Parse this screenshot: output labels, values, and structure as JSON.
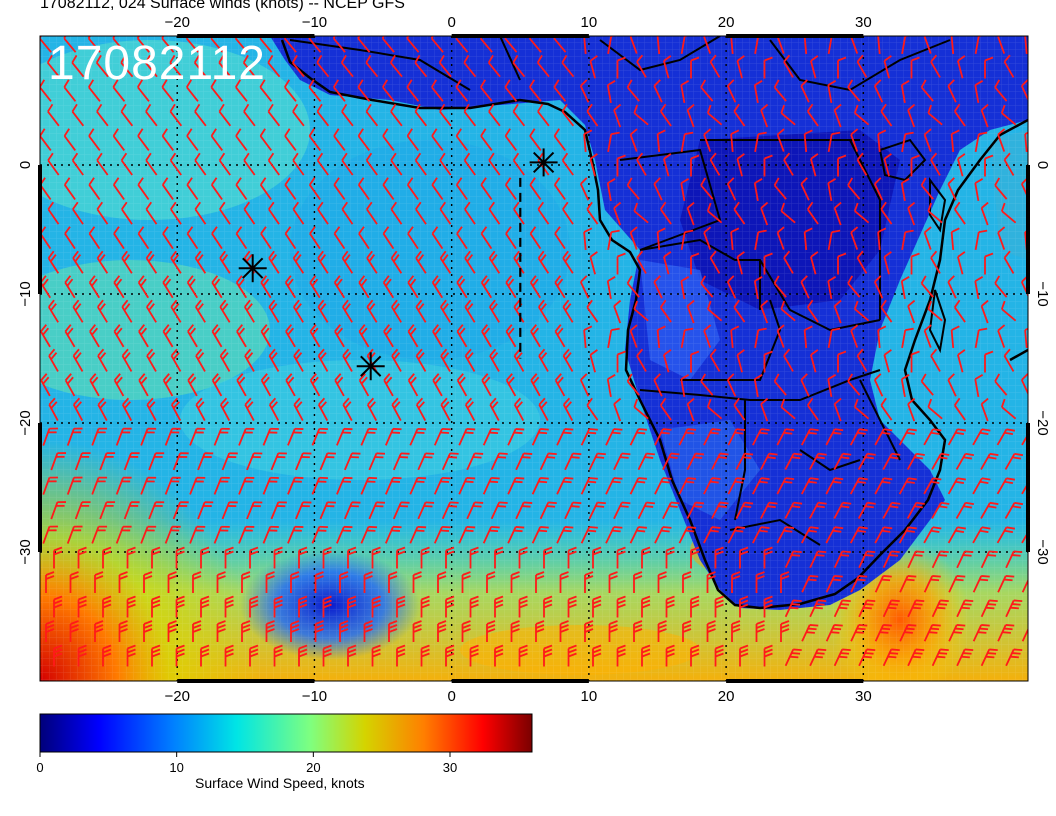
{
  "header": {
    "title": "17082112, 024 Surface winds (knots) -- NCEP GFS",
    "stamp": "17082112"
  },
  "map": {
    "lon_range": [
      -30,
      42
    ],
    "lat_range": [
      -40,
      10
    ],
    "lon_ticks": [
      "-20",
      "-10",
      "0",
      "10",
      "20",
      "30"
    ],
    "lon_tick_values": [
      -20,
      -10,
      0,
      10,
      20,
      30
    ],
    "lat_ticks": [
      "0",
      "-10",
      "-20",
      "-30"
    ],
    "lat_tick_values": [
      0,
      -10,
      -20,
      -30
    ],
    "coastline_color": "#000000",
    "barb_color": "#ff1a1a",
    "storm_markers": [
      {
        "lon": 6.7,
        "lat": 0.2
      },
      {
        "lon": -14.5,
        "lat": -8.0
      },
      {
        "lon": -5.9,
        "lat": -15.6
      }
    ],
    "dashed_track": [
      [
        5.0,
        -1.0
      ],
      [
        5.0,
        -15.0
      ]
    ]
  },
  "colorbar": {
    "title": "Surface Wind Speed, knots",
    "min": 0,
    "max": 36,
    "tick_labels": [
      "0",
      "10",
      "20",
      "30"
    ],
    "tick_values": [
      0,
      10,
      20,
      30
    ],
    "colors": [
      "#00007a",
      "#0000ff",
      "#007fff",
      "#00e5e5",
      "#7fff7f",
      "#d4d400",
      "#ff7f00",
      "#ff0000",
      "#7a0000"
    ]
  }
}
